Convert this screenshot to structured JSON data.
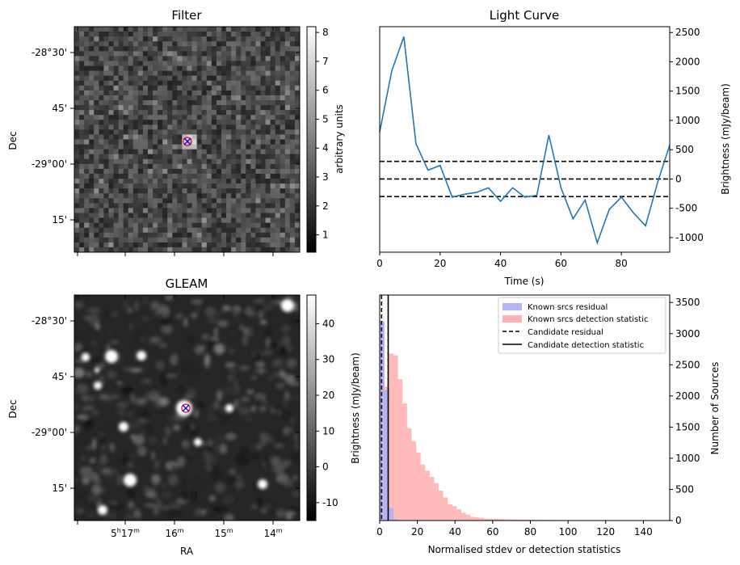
{
  "panels": {
    "filter": {
      "title": "Filter",
      "ylabel": "Dec",
      "dec_ticks": [
        "-28°30'",
        "45'",
        "-29°00'",
        "15'"
      ],
      "colorbar": {
        "label": "arbitrary units",
        "ticks": [
          "1",
          "2",
          "3",
          "4",
          "5",
          "6",
          "7",
          "8"
        ],
        "vmin": 0.4,
        "vmax": 8.2
      }
    },
    "gleam": {
      "title": "GLEAM",
      "ylabel": "Dec",
      "xlabel": "RA",
      "dec_ticks": [
        "-28°30'",
        "45'",
        "-29°00'",
        "15'"
      ],
      "ra_ticks": [
        {
          "h": "5",
          "m": "17"
        },
        {
          "h": "",
          "m": "16"
        },
        {
          "h": "",
          "m": "15"
        },
        {
          "h": "",
          "m": "14"
        }
      ],
      "colorbar": {
        "ticks": [
          "-10",
          "0",
          "10",
          "20",
          "30",
          "40"
        ],
        "vmin": -15,
        "vmax": 48
      }
    },
    "lightcurve": {
      "title": "Light Curve",
      "xlabel": "Time (s)",
      "ylabel": "Brightness (mJy/beam)",
      "xticks": [
        "0",
        "20",
        "40",
        "60",
        "80"
      ],
      "yticks": [
        "-1000",
        "-500",
        "0",
        "500",
        "1000",
        "1500",
        "2000",
        "2500"
      ]
    },
    "histogram": {
      "xlabel": "Normalised stdev or detection statistics",
      "ylabel_left": "Brightness (mJy/beam)",
      "ylabel_right": "Number of Sources",
      "xticks": [
        "0",
        "20",
        "40",
        "60",
        "80",
        "100",
        "120",
        "140"
      ],
      "yticks": [
        "0",
        "500",
        "1000",
        "1500",
        "2000",
        "2500",
        "3000",
        "3500"
      ],
      "legend": [
        {
          "label": "Known srcs residual"
        },
        {
          "label": "Known srcs detection statistic"
        },
        {
          "label": "Candidate residual"
        },
        {
          "label": "Candidate detection statistic"
        }
      ]
    }
  },
  "colors": {
    "line": "#1f77b4",
    "residual_hist": "#b3b3f5",
    "detection_hist": "#ffb3b3",
    "candidate_marker": "#ff0000",
    "candidate_x": "#0000ff"
  },
  "chart_data": [
    {
      "type": "line",
      "title": "Light Curve",
      "xlabel": "Time (s)",
      "ylabel": "Brightness (mJy/beam)",
      "xlim": [
        0,
        96
      ],
      "ylim": [
        -1250,
        2600
      ],
      "x": [
        0,
        4,
        8,
        12,
        16,
        20,
        24,
        28,
        32,
        36,
        40,
        44,
        48,
        52,
        56,
        60,
        64,
        68,
        72,
        76,
        80,
        84,
        88,
        92,
        96
      ],
      "series": [
        {
          "values": [
            800,
            1850,
            2430,
            600,
            150,
            230,
            -310,
            -260,
            -230,
            -150,
            -380,
            -150,
            -310,
            -280,
            750,
            -150,
            -680,
            -360,
            -1090,
            -520,
            -310,
            -580,
            -800,
            -60,
            580
          ]
        }
      ],
      "hlines": [
        300,
        0,
        -300
      ]
    },
    {
      "type": "bar",
      "xlabel": "Normalised stdev or detection statistics",
      "ylabel_right": "Number of Sources",
      "xlim": [
        0,
        154
      ],
      "ylim": [
        0,
        3620
      ],
      "bin_width": 2.4,
      "series": [
        {
          "name": "Known srcs residual",
          "bins_start": 0,
          "values": [
            3200,
            2100,
            200,
            30
          ]
        },
        {
          "name": "Known srcs detection statistic",
          "bins_start": 0,
          "values": [
            3050,
            2150,
            2680,
            2650,
            2270,
            1880,
            1480,
            1270,
            1090,
            900,
            800,
            700,
            600,
            480,
            370,
            260,
            230,
            180,
            125,
            95,
            60,
            50,
            45,
            30,
            28,
            25,
            25,
            22,
            20,
            18,
            17,
            15,
            14,
            13,
            12,
            11,
            10,
            9,
            8,
            8,
            7,
            7,
            6,
            6,
            5,
            5,
            5,
            4,
            4,
            4,
            3,
            3,
            3,
            3,
            3,
            2,
            2,
            2,
            2,
            2,
            2,
            2,
            2,
            2
          ]
        }
      ],
      "vlines": [
        {
          "name": "Candidate residual",
          "x": 1.0
        },
        {
          "name": "Candidate detection statistic",
          "x": 4.5
        }
      ]
    }
  ]
}
